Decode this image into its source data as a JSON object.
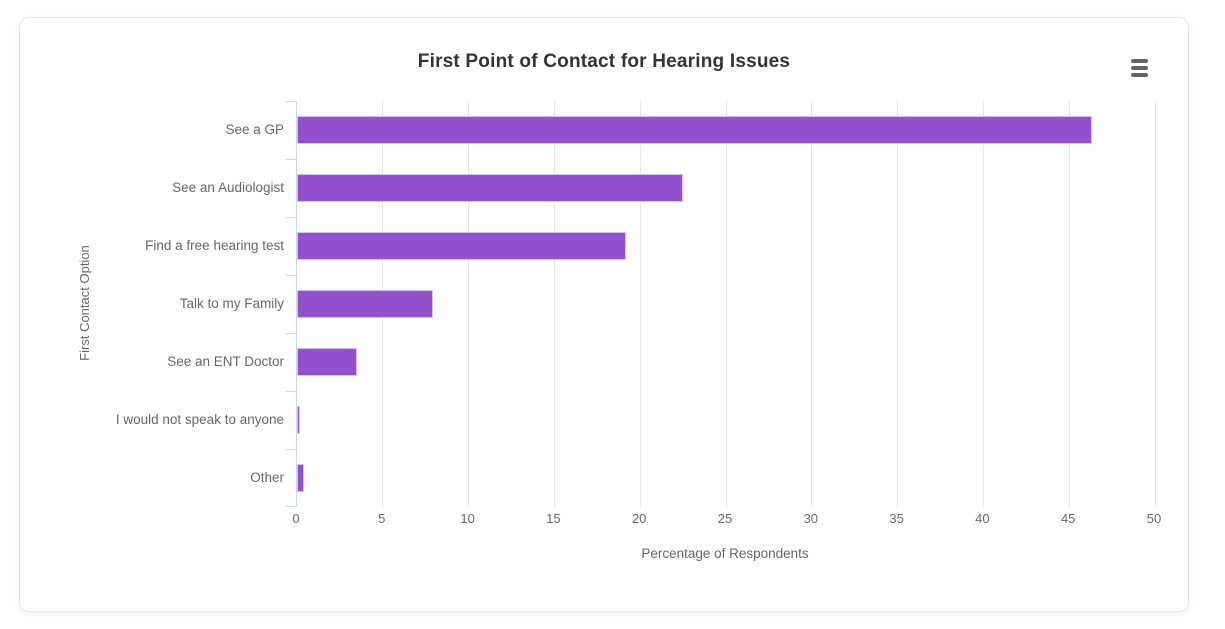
{
  "chart_data": {
    "type": "bar",
    "orientation": "horizontal",
    "title": "First Point of Contact for Hearing Issues",
    "categories": [
      "See a GP",
      "See an Audiologist",
      "Find a free hearing test",
      "Talk to my Family",
      "See an ENT Doctor",
      "I would not speak to anyone",
      "Other"
    ],
    "values": [
      46.3,
      22.5,
      19.2,
      7.9,
      3.5,
      0.2,
      0.4
    ],
    "xlabel": "Percentage of Respondents",
    "ylabel": "First Contact Option",
    "xlim": [
      0,
      50
    ],
    "xticks": [
      0,
      5,
      10,
      15,
      20,
      25,
      30,
      35,
      40,
      45,
      50
    ],
    "grid": true,
    "legend": false,
    "colors": {
      "bar_fill": "#9451ce",
      "bar_border": "#d6c2f0",
      "gridline": "#e6e6e6",
      "axis_line": "#ccd6eb",
      "title_text": "#333333",
      "label_text": "#666666"
    }
  },
  "toolbar": {
    "context_menu_tooltip": "Chart context menu"
  }
}
